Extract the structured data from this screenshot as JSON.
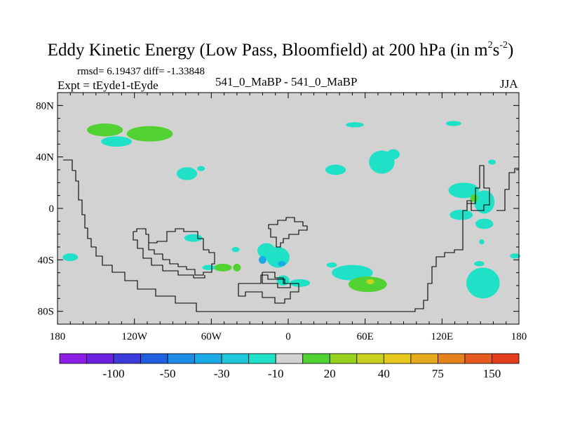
{
  "title": {
    "main": "Eddy Kinetic Energy (Low Pass, Bloomfield) at 200 hPa (in m",
    "sup1": "2",
    "mid": "s",
    "sup2": "-2",
    "end": ")"
  },
  "header": {
    "stats": "rmsd= 6.19437 diff= -1.33848",
    "expt": "Expt = tEyde1-tEyde",
    "case": "541_0_MaBP - 541_0_MaBP",
    "season": "JJA"
  },
  "chart_data": {
    "type": "heatmap",
    "title": "Eddy Kinetic Energy (Low Pass, Bloomfield) at 200 hPa (in m2s-2)",
    "xlabel": "",
    "ylabel": "",
    "xlim": [
      180,
      540
    ],
    "ylim": [
      -90,
      90
    ],
    "background_color": "#d2d2d2",
    "x_ticks": [
      {
        "value": 180,
        "label": "180"
      },
      {
        "value": 240,
        "label": "120W"
      },
      {
        "value": 300,
        "label": "60W"
      },
      {
        "value": 360,
        "label": "0"
      },
      {
        "value": 420,
        "label": "60E"
      },
      {
        "value": 480,
        "label": "120E"
      },
      {
        "value": 540,
        "label": "180"
      }
    ],
    "y_ticks": [
      {
        "value": 80,
        "label": "80N"
      },
      {
        "value": 40,
        "label": "40N"
      },
      {
        "value": 0,
        "label": "0"
      },
      {
        "value": -40,
        "label": "40S"
      },
      {
        "value": -80,
        "label": "80S"
      }
    ],
    "colorbar": {
      "colors": [
        "#8c1ee6",
        "#6a22e0",
        "#3c3cdc",
        "#2060e0",
        "#1e8ce6",
        "#1aaae6",
        "#1ec8dc",
        "#1ee1c8",
        "#d2d2d2",
        "#52d232",
        "#96d21e",
        "#c8d21e",
        "#e6c81e",
        "#e6aa1e",
        "#e6821e",
        "#e65a1e",
        "#e63c1e"
      ],
      "labels": [
        {
          "after_bin": 1,
          "text": "-100"
        },
        {
          "after_bin": 3,
          "text": "-50"
        },
        {
          "after_bin": 5,
          "text": "-30"
        },
        {
          "after_bin": 7,
          "text": "-10"
        },
        {
          "after_bin": 9,
          "text": "20"
        },
        {
          "after_bin": 11,
          "text": "40"
        },
        {
          "after_bin": 13,
          "text": "75"
        },
        {
          "after_bin": 15,
          "text": "150"
        }
      ]
    },
    "blobs": [
      {
        "lon": 217,
        "lat": 61,
        "rx": 14,
        "ry": 5,
        "level": "20"
      },
      {
        "lon": 252,
        "lat": 58,
        "rx": 18,
        "ry": 6,
        "level": "20"
      },
      {
        "lon": 226,
        "lat": 52,
        "rx": 12,
        "ry": 4,
        "level": "-10"
      },
      {
        "lon": 343,
        "lat": -33,
        "rx": 7,
        "ry": 6,
        "level": "-10"
      },
      {
        "lon": 352,
        "lat": -38,
        "rx": 9,
        "ry": 8,
        "level": "-10"
      },
      {
        "lon": 340,
        "lat": -40,
        "rx": 3,
        "ry": 3,
        "level": "-30"
      },
      {
        "lon": 355,
        "lat": -43,
        "rx": 3,
        "ry": 2,
        "level": "-30"
      },
      {
        "lon": 356,
        "lat": -56,
        "rx": 5,
        "ry": 4,
        "level": "-10"
      },
      {
        "lon": 369,
        "lat": -58,
        "rx": 8,
        "ry": 3,
        "level": "-10"
      },
      {
        "lon": 309,
        "lat": -46,
        "rx": 7,
        "ry": 3,
        "level": "20"
      },
      {
        "lon": 298,
        "lat": -46,
        "rx": 5,
        "ry": 2,
        "level": "-10"
      },
      {
        "lon": 320,
        "lat": -46,
        "rx": 3,
        "ry": 3,
        "level": "20"
      },
      {
        "lon": 410,
        "lat": -50,
        "rx": 16,
        "ry": 6,
        "level": "-10"
      },
      {
        "lon": 422,
        "lat": -59,
        "rx": 15,
        "ry": 6,
        "level": "20"
      },
      {
        "lon": 424,
        "lat": -57,
        "rx": 3,
        "ry": 2,
        "level": "40"
      },
      {
        "lon": 433,
        "lat": 36,
        "rx": 10,
        "ry": 9,
        "level": "-10"
      },
      {
        "lon": 397,
        "lat": 30,
        "rx": 8,
        "ry": 4,
        "level": "-10"
      },
      {
        "lon": 442,
        "lat": 42,
        "rx": 5,
        "ry": 4,
        "level": "-10"
      },
      {
        "lon": 497,
        "lat": 14,
        "rx": 12,
        "ry": 6,
        "level": "-10"
      },
      {
        "lon": 513,
        "lat": 5,
        "rx": 8,
        "ry": 9,
        "level": "-10"
      },
      {
        "lon": 495,
        "lat": -5,
        "rx": 9,
        "ry": 4,
        "level": "-10"
      },
      {
        "lon": 513,
        "lat": -12,
        "rx": 7,
        "ry": 4,
        "level": "-10"
      },
      {
        "lon": 505,
        "lat": 8,
        "rx": 3,
        "ry": 3,
        "level": "20"
      },
      {
        "lon": 512,
        "lat": -58,
        "rx": 13,
        "ry": 12,
        "level": "-10"
      },
      {
        "lon": 509,
        "lat": -43,
        "rx": 4,
        "ry": 2,
        "level": "-10"
      },
      {
        "lon": 537,
        "lat": -37,
        "rx": 4,
        "ry": 2,
        "level": "-10"
      },
      {
        "lon": 281,
        "lat": 27,
        "rx": 8,
        "ry": 5,
        "level": "-10"
      },
      {
        "lon": 292,
        "lat": 31,
        "rx": 3,
        "ry": 2,
        "level": "-10"
      },
      {
        "lon": 190,
        "lat": -38,
        "rx": 6,
        "ry": 3,
        "level": "-10"
      },
      {
        "lon": 286,
        "lat": -23,
        "rx": 7,
        "ry": 3,
        "level": "-10"
      },
      {
        "lon": 319,
        "lat": -32,
        "rx": 3,
        "ry": 2,
        "level": "-10"
      },
      {
        "lon": 394,
        "lat": -44,
        "rx": 4,
        "ry": 2,
        "level": "-10"
      },
      {
        "lon": 489,
        "lat": 66,
        "rx": 6,
        "ry": 2,
        "level": "-10"
      },
      {
        "lon": 412,
        "lat": 65,
        "rx": 7,
        "ry": 2,
        "level": "-10"
      },
      {
        "lon": 519,
        "lat": 36,
        "rx": 3,
        "ry": 2,
        "level": "-10"
      },
      {
        "lon": 511,
        "lat": -26,
        "rx": 2,
        "ry": 2,
        "level": "-10"
      }
    ]
  }
}
